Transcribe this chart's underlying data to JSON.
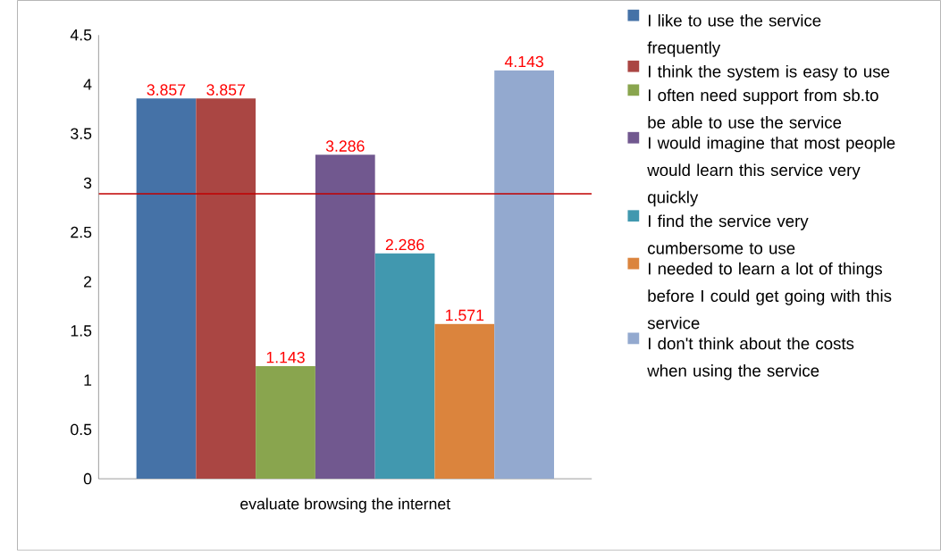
{
  "chart_data": {
    "type": "bar",
    "categories": [
      "evaluate browsing the internet"
    ],
    "series": [
      {
        "name": "I like to use the service frequently",
        "color": "#4572a7",
        "values": [
          3.857
        ]
      },
      {
        "name": "I think the system is easy to use",
        "color": "#aa4643",
        "values": [
          3.857
        ]
      },
      {
        "name": "I often need support from sb.to be able to use the service",
        "color": "#89a54e",
        "values": [
          1.143
        ]
      },
      {
        "name": "I would imagine that most people would learn this service very quickly",
        "color": "#71588f",
        "values": [
          3.286
        ]
      },
      {
        "name": "I find the service very cumbersome to use",
        "color": "#4198af",
        "values": [
          2.286
        ]
      },
      {
        "name": "I needed to learn a lot of things before I could get going with this service",
        "color": "#db843d",
        "values": [
          1.571
        ]
      },
      {
        "name": "I don't think about the costs when using the service",
        "color": "#93a9cf",
        "values": [
          4.143
        ]
      }
    ],
    "ylim": [
      0,
      4.5
    ],
    "yticks": [
      0,
      0.5,
      1,
      1.5,
      2,
      2.5,
      3,
      3.5,
      4,
      4.5
    ],
    "data_labels": true,
    "legend": "right",
    "grid": false,
    "ref_lines": [
      {
        "axis": "y",
        "value": 2.89,
        "color": "#c00000"
      }
    ]
  }
}
